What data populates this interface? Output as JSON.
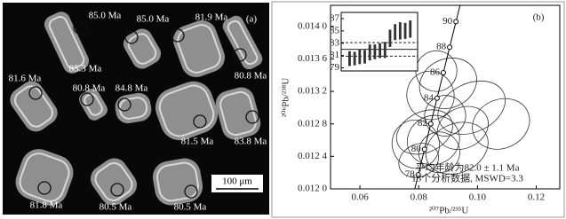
{
  "chart_data": [
    {
      "type": "image",
      "panel_label": "(a)",
      "labels": [
        "85.0 Ma",
        "85.0 Ma",
        "81.9 Ma",
        "85.3 Ma",
        "81.6 Ma",
        "80.8 Ma",
        "84.8 Ma",
        "80.8 Ma",
        "81.5 Ma",
        "83.8 Ma",
        "81.8 Ma",
        "80.5 Ma",
        "80.5 Ma"
      ],
      "scale_bar": "100 μm"
    },
    {
      "type": "concordia",
      "panel_label": "(b)",
      "x_label": "²⁰⁷Pb/²³⁵U",
      "y_label": "²⁰⁶Pb/²³⁸U",
      "xlim": [
        0.05,
        0.128
      ],
      "ylim": [
        0.012,
        0.01426
      ],
      "xticks": [
        0.06,
        0.08,
        {
          "value": 0.1,
          "label": "0.10"
        },
        0.12
      ],
      "yticks": [
        {
          "value": 0.012,
          "label": "0.012 0"
        },
        {
          "value": 0.0124,
          "label": "0.012 4"
        },
        {
          "value": 0.0128,
          "label": "0.012 8"
        },
        {
          "value": 0.0132,
          "label": "0.013 2"
        },
        {
          "value": 0.0136,
          "label": "0.013 6"
        },
        {
          "value": 0.014,
          "label": "0.014 0"
        }
      ],
      "concordia_ages": [
        78,
        80,
        82,
        84,
        86,
        88,
        90
      ],
      "analyses": {
        "x": [
          0.086,
          0.09,
          0.084,
          0.089,
          0.098,
          0.095,
          0.108,
          0.082,
          0.085,
          0.079,
          0.087,
          0.093,
          0.08
        ],
        "y": [
          0.01345,
          0.0133,
          0.01315,
          0.0129,
          0.013,
          0.01275,
          0.0128,
          0.0127,
          0.0126,
          0.01255,
          0.01245,
          0.0125,
          0.01235
        ],
        "x_err": [
          0.007,
          0.01,
          0.008,
          0.007,
          0.012,
          0.009,
          0.01,
          0.01,
          0.009,
          0.008,
          0.007,
          0.011,
          0.007
        ],
        "y_err": [
          0.00025,
          0.0003,
          0.0003,
          0.00025,
          0.0003,
          0.00025,
          0.0003,
          0.00025,
          0.0003,
          0.0003,
          0.00025,
          0.0003,
          0.0002
        ]
      },
      "annotations": [
        "平均年龄为82.0 ± 1.1 Ma",
        "13个分析数据, MSWD=3.3"
      ],
      "inset": {
        "ylim": [
          78.5,
          88
        ],
        "yticks": [
          79,
          81,
          83,
          85,
          87
        ],
        "values": [
          80.5,
          80.5,
          80.8,
          80.8,
          81.5,
          81.6,
          81.8,
          81.9,
          83.8,
          84.8,
          85.0,
          85.0,
          85.3
        ],
        "errors": [
          1.2,
          1.1,
          1.2,
          1.1,
          1.3,
          1.2,
          1.2,
          1.3,
          1.4,
          1.3,
          1.4,
          1.3,
          1.4
        ],
        "mean": 82.0,
        "mean_err": 1.1
      }
    }
  ]
}
